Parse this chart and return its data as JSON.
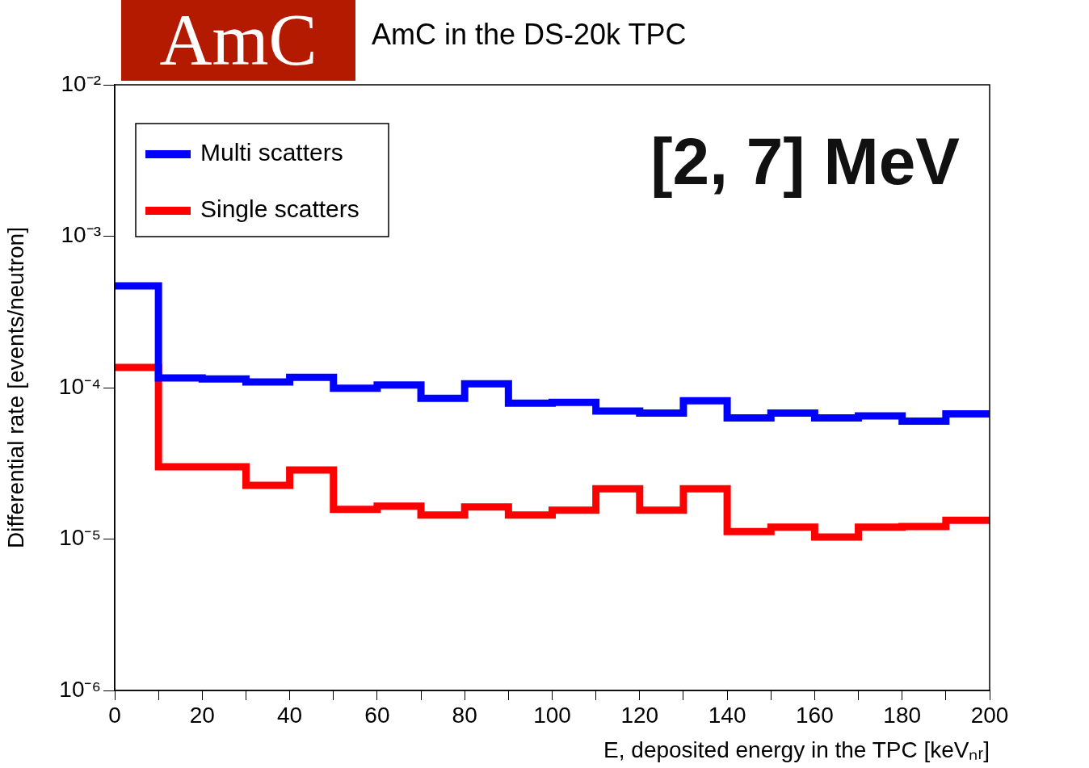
{
  "chart_data": {
    "type": "histogram",
    "title": "AmC in the DS-20k TPC",
    "xlabel": "E, deposited energy in the TPC [keVₙᵣ]",
    "ylabel": "Differential rate [events/neutron]",
    "bins": [
      0,
      10,
      20,
      30,
      40,
      50,
      60,
      70,
      80,
      90,
      100,
      110,
      120,
      130,
      140,
      150,
      160,
      170,
      180,
      190,
      200
    ],
    "series": [
      {
        "name": "Multi scatters",
        "color": "#0000ff",
        "values": [
          0.00047,
          0.000116,
          0.000114,
          0.000109,
          0.000117,
          9.9e-05,
          0.000104,
          8.5e-05,
          0.000106,
          7.9e-05,
          8e-05,
          7e-05,
          6.8e-05,
          8.2e-05,
          6.3e-05,
          6.8e-05,
          6.3e-05,
          6.5e-05,
          6e-05,
          6.7e-05
        ]
      },
      {
        "name": "Single scatters",
        "color": "#ff0000",
        "values": [
          0.000136,
          3e-05,
          3e-05,
          2.26e-05,
          2.86e-05,
          1.57e-05,
          1.65e-05,
          1.44e-05,
          1.63e-05,
          1.44e-05,
          1.55e-05,
          2.15e-05,
          1.55e-05,
          2.15e-05,
          1.12e-05,
          1.2e-05,
          1.03e-05,
          1.2e-05,
          1.21e-05,
          1.33e-05
        ]
      }
    ],
    "xlim": [
      0,
      200
    ],
    "xticks": [
      0,
      {
        "value": 10,
        "label": null
      },
      20,
      {
        "value": 30,
        "label": null
      },
      40,
      {
        "value": 50,
        "label": null
      },
      60,
      {
        "value": 70,
        "label": null
      },
      80,
      {
        "value": 90,
        "label": null
      },
      100,
      {
        "value": 110,
        "label": null
      },
      120,
      {
        "value": 130,
        "label": null
      },
      140,
      {
        "value": 150,
        "label": null
      },
      160,
      {
        "value": 170,
        "label": null
      },
      180,
      {
        "value": 190,
        "label": null
      },
      200
    ],
    "ylim": [
      1e-06,
      0.01
    ],
    "log": "y",
    "yticks": [
      {
        "value": 1e-06,
        "label": "10⁻⁶"
      },
      {
        "value": 1e-05,
        "label": "10⁻⁵"
      },
      {
        "value": 0.0001,
        "label": "10⁻⁴"
      },
      {
        "value": 0.001,
        "label": "10⁻³"
      },
      {
        "value": 0.01,
        "label": "10⁻²"
      }
    ],
    "grid": false,
    "legend": "top left",
    "annotations": [
      "[2, 7] MeV",
      "AmC"
    ]
  }
}
